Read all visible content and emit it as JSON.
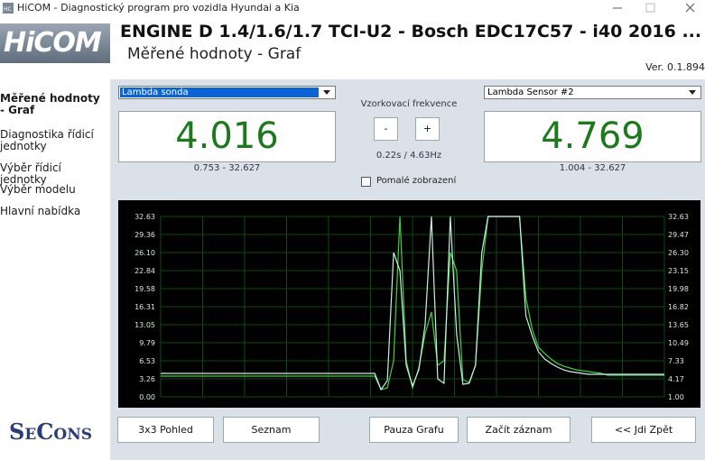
{
  "window": {
    "title": "HiCOM - Diagnostický program pro vozidla Hyundai a Kia"
  },
  "header": {
    "logo": "HiCOM",
    "title": "ENGINE D 1.4/1.6/1.7 TCI-U2 - Bosch EDC17C57 - i40 2016 ...",
    "subtitle": "Měřené hodnoty - Graf",
    "version": "Ver. 0.1.894"
  },
  "sidebar": {
    "items": [
      "Měřené hodnoty - Graf",
      "Diagnostika řídicí jednotky",
      "Výběr řídicí jednotky",
      "Výběr modelu",
      "Hlavní nabídka"
    ],
    "logo": "SeCons"
  },
  "controls": {
    "left": {
      "select": "Lambda sonda",
      "value": "4.016",
      "range": "0.753 - 32.627"
    },
    "right": {
      "select": "Lambda Sensor #2",
      "value": "4.769",
      "range": "1.004 - 32.627"
    },
    "frequency": {
      "label": "Vzorkovací frekvence",
      "minus": "-",
      "plus": "+",
      "value": "0.22s / 4.63Hz"
    },
    "slow_display": "Pomalé zobrazení"
  },
  "chart_data": {
    "type": "line",
    "ylim": [
      0,
      32.63
    ],
    "yticks": [
      {
        "value": 0,
        "label": "0.00"
      },
      3.26,
      6.53,
      9.79,
      13.05,
      16.31,
      19.58,
      22.84,
      {
        "value": 26.1,
        "label": "26.10"
      },
      29.36,
      32.63
    ],
    "y2lim": [
      1,
      32.63
    ],
    "y2ticks": [
      {
        "value": 1,
        "label": "1.00"
      },
      4.17,
      7.33,
      10.49,
      13.65,
      16.82,
      19.98,
      23.15,
      {
        "value": 26.3,
        "label": "26.30"
      },
      29.47,
      32.63
    ],
    "series": [
      {
        "color": "#3cd23c",
        "values": [
          3.75,
          3.75,
          3.75,
          3.75,
          3.75,
          3.75,
          3.75,
          3.75,
          3.75,
          3.75,
          3.75,
          3.75,
          3.75,
          3.75,
          3.75,
          3.75,
          3.75,
          3.75,
          3.75,
          3.75,
          3.75,
          3.75,
          3.75,
          3.75,
          3.75,
          3.75,
          3.75,
          3.75,
          3.75,
          3.75,
          3.75,
          3.75,
          3.75,
          3.75,
          3.75,
          1.31,
          1.63,
          6.53,
          32.63,
          6.53,
          1.63,
          5.22,
          11.42,
          15.34,
          5.71,
          6.53,
          26.1,
          22.84,
          3.1,
          2.61,
          5.71,
          22.84,
          32.63,
          32.63,
          32.63,
          32.63,
          32.63,
          32.63,
          17.95,
          12.24,
          8.97,
          7.83,
          6.85,
          6.04,
          5.55,
          5.22,
          4.89,
          4.73,
          4.57,
          4.41,
          4.24,
          3.92,
          3.92,
          3.92,
          3.92,
          3.92,
          3.92,
          3.92,
          3.92,
          3.92,
          3.92
        ]
      },
      {
        "color": "#c8f0e6",
        "values": [
          4.24,
          4.24,
          4.24,
          4.24,
          4.24,
          4.24,
          4.24,
          4.24,
          4.24,
          4.24,
          4.24,
          4.24,
          4.24,
          4.24,
          4.24,
          4.24,
          4.24,
          4.24,
          4.24,
          4.24,
          4.24,
          4.24,
          4.24,
          4.24,
          4.24,
          4.24,
          4.24,
          4.24,
          4.24,
          4.24,
          4.24,
          4.24,
          4.24,
          4.24,
          4.24,
          1.31,
          2.94,
          26.1,
          22.84,
          5.71,
          1.96,
          4.89,
          13.05,
          32.63,
          3.26,
          2.45,
          32.63,
          11.42,
          2.28,
          2.45,
          5.71,
          26.1,
          32.63,
          32.63,
          32.63,
          32.63,
          32.63,
          32.63,
          14.68,
          11.09,
          8.16,
          6.85,
          6.04,
          5.38,
          4.89,
          4.57,
          4.41,
          4.24,
          4.08,
          4.08,
          4.08,
          4.08,
          4.08,
          4.08,
          4.08,
          4.08,
          4.08,
          4.08,
          4.08,
          4.08,
          4.08
        ]
      }
    ]
  },
  "buttons": [
    "3x3 Pohled",
    "Seznam",
    "Pauza Grafu",
    "Začít záznam",
    "<< Jdi Zpět"
  ]
}
